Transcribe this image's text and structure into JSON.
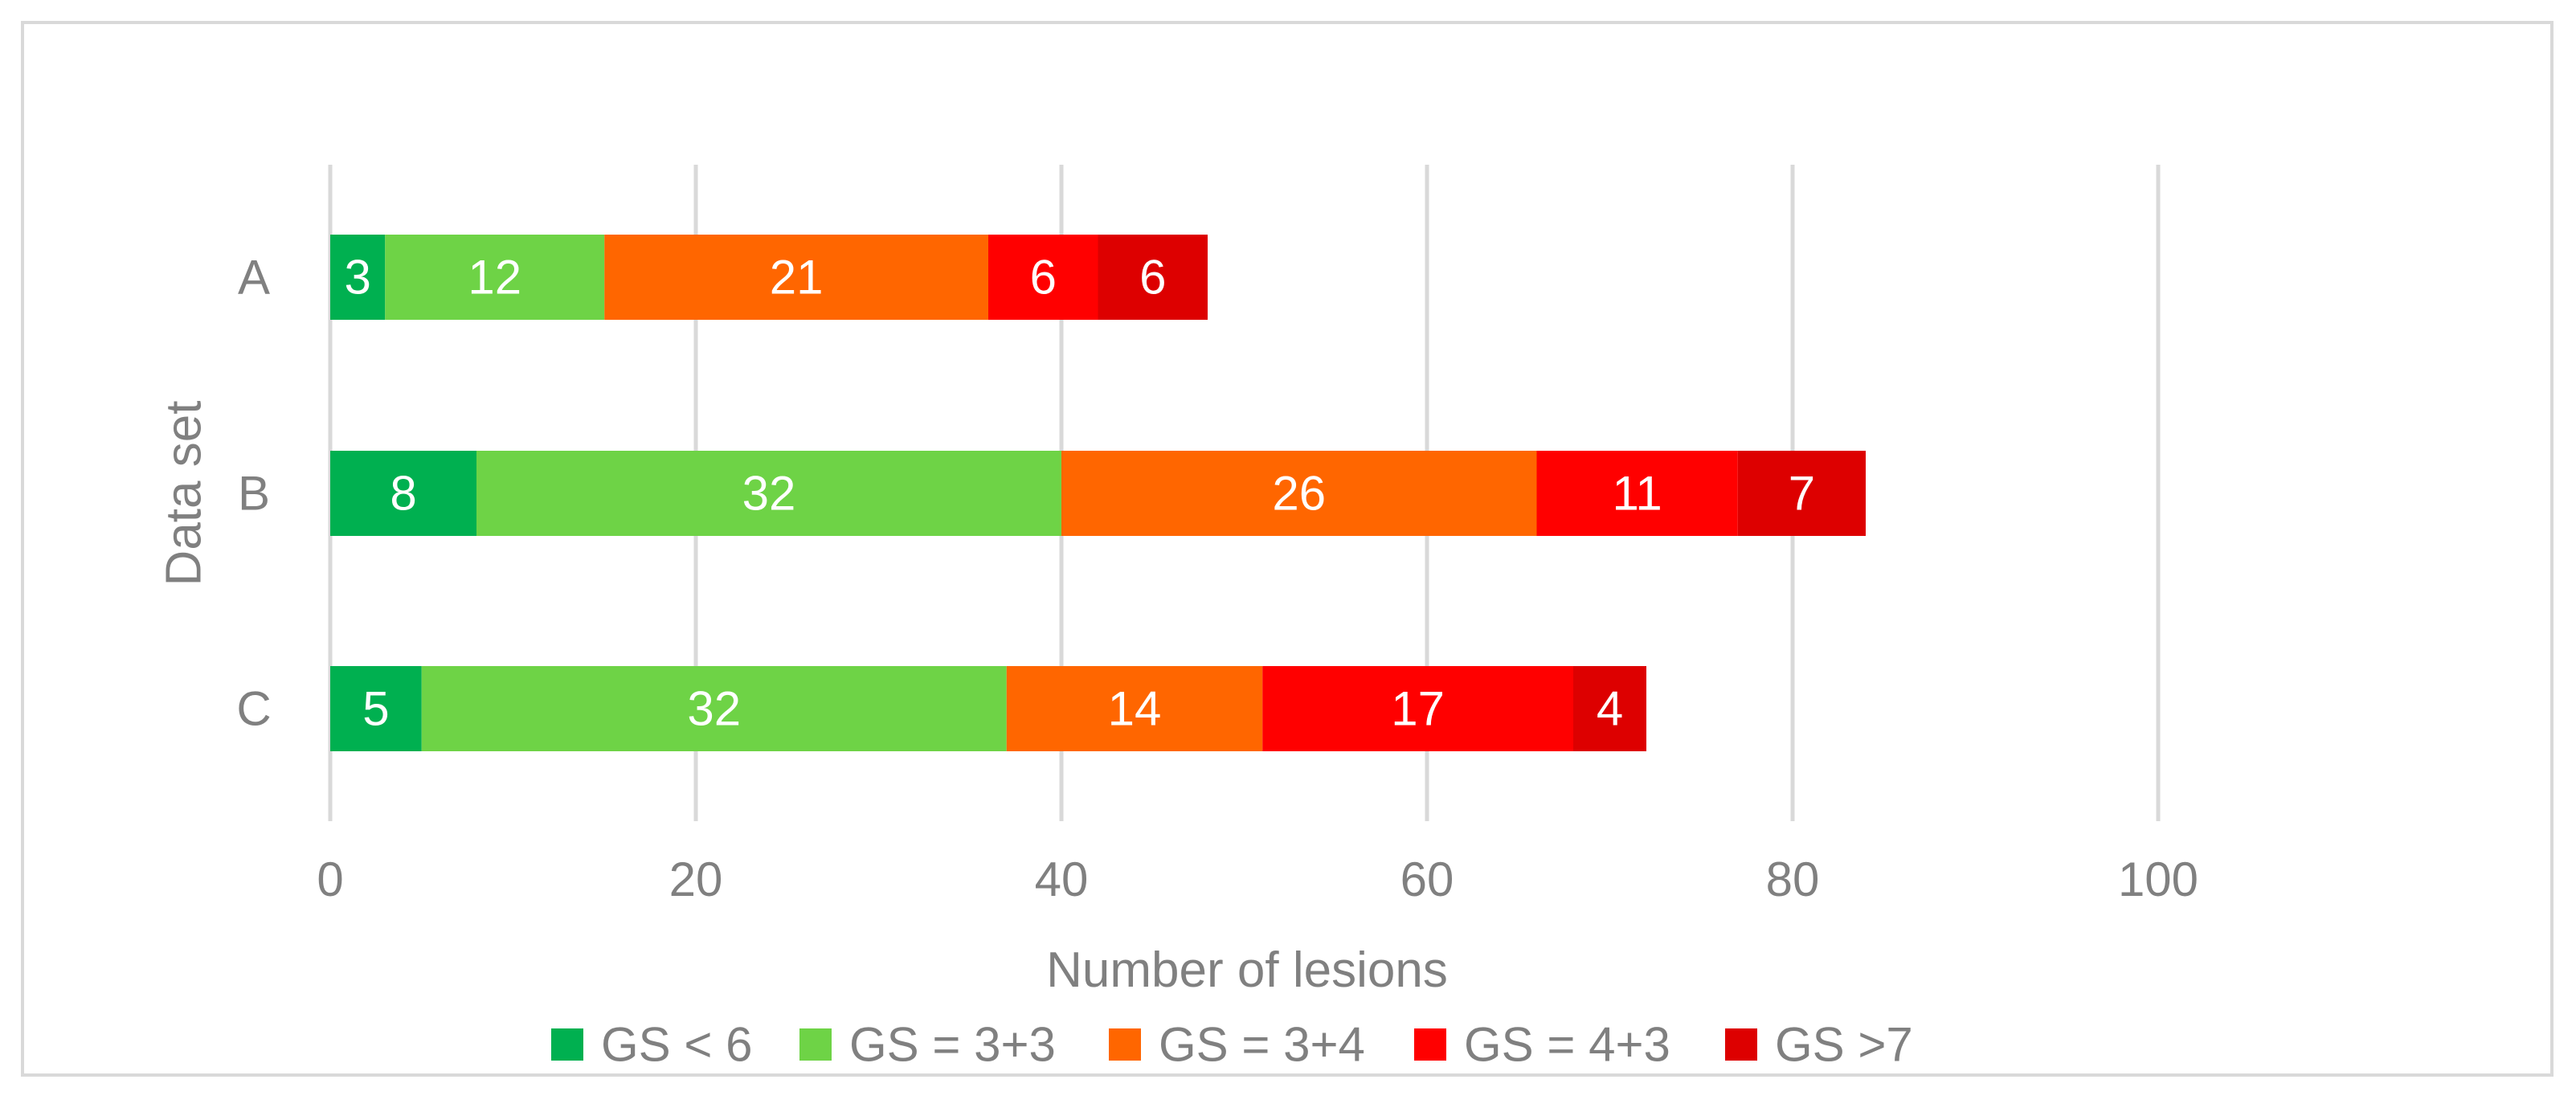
{
  "chart_data": {
    "type": "bar",
    "orientation": "horizontal",
    "stacked": true,
    "categories": [
      "A",
      "B",
      "C"
    ],
    "series": [
      {
        "name": "GS < 6",
        "color": "#00b050",
        "values": [
          3,
          8,
          5
        ]
      },
      {
        "name": "GS = 3+3",
        "color": "#6ed346",
        "values": [
          12,
          32,
          32
        ]
      },
      {
        "name": "GS = 3+4",
        "color": "#ff6600",
        "values": [
          21,
          26,
          14
        ]
      },
      {
        "name": "GS = 4+3",
        "color": "#ff0000",
        "values": [
          6,
          11,
          17
        ]
      },
      {
        "name": "GS >7",
        "color": "#dd0000",
        "values": [
          6,
          7,
          4
        ]
      }
    ],
    "xlabel": "Number of lesions",
    "ylabel": "Data set",
    "xlim": [
      0,
      100
    ],
    "xticks": [
      "0",
      "20",
      "40",
      "60",
      "80",
      "100"
    ],
    "grid": "vertical",
    "legend_position": "bottom",
    "data_labels": true,
    "text_color": "#808080",
    "grid_color": "#d9d9d9",
    "label_color": "#ffffff"
  }
}
